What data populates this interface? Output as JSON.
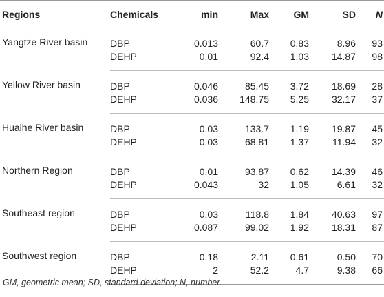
{
  "table": {
    "headers": [
      "Regions",
      "Chemicals",
      "min",
      "Max",
      "GM",
      "SD",
      "N"
    ],
    "rows": [
      {
        "region": "Yangtze River basin",
        "items": [
          {
            "chemical": "DBP",
            "min": "0.013",
            "max": "60.7",
            "gm": "0.83",
            "sd": "8.96",
            "n": "93"
          },
          {
            "chemical": "DEHP",
            "min": "0.01",
            "max": "92.4",
            "gm": "1.03",
            "sd": "14.87",
            "n": "98"
          }
        ]
      },
      {
        "region": "Yellow River basin",
        "items": [
          {
            "chemical": "DBP",
            "min": "0.046",
            "max": "85.45",
            "gm": "3.72",
            "sd": "18.69",
            "n": "28"
          },
          {
            "chemical": "DEHP",
            "min": "0.036",
            "max": "148.75",
            "gm": "5.25",
            "sd": "32.17",
            "n": "37"
          }
        ]
      },
      {
        "region": "Huaihe River basin",
        "items": [
          {
            "chemical": "DBP",
            "min": "0.03",
            "max": "133.7",
            "gm": "1.19",
            "sd": "19.87",
            "n": "45"
          },
          {
            "chemical": "DEHP",
            "min": "0.03",
            "max": "68.81",
            "gm": "1.37",
            "sd": "11.94",
            "n": "32"
          }
        ]
      },
      {
        "region": "Northern Region",
        "items": [
          {
            "chemical": "DBP",
            "min": "0.01",
            "max": "93.87",
            "gm": "0.62",
            "sd": "14.39",
            "n": "46"
          },
          {
            "chemical": "DEHP",
            "min": "0.043",
            "max": "32",
            "gm": "1.05",
            "sd": "6.61",
            "n": "32"
          }
        ]
      },
      {
        "region": "Southeast region",
        "items": [
          {
            "chemical": "DBP",
            "min": "0.03",
            "max": "118.8",
            "gm": "1.84",
            "sd": "40.63",
            "n": "97"
          },
          {
            "chemical": "DEHP",
            "min": "0.087",
            "max": "99.02",
            "gm": "1.92",
            "sd": "18.31",
            "n": "87"
          }
        ]
      },
      {
        "region": "Southwest region",
        "items": [
          {
            "chemical": "DBP",
            "min": "0.18",
            "max": "2.11",
            "gm": "0.61",
            "sd": "0.50",
            "n": "70"
          },
          {
            "chemical": "DEHP",
            "min": "2",
            "max": "52.2",
            "gm": "4.7",
            "sd": "9.38",
            "n": "66"
          }
        ]
      }
    ]
  },
  "footnote": "GM, geometric mean; SD, standard deviation; N, number."
}
